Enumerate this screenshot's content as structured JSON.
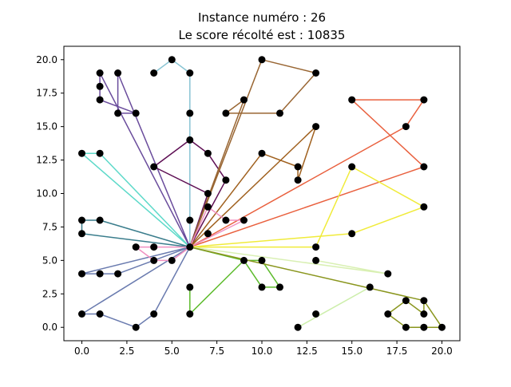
{
  "chart_data": {
    "type": "line",
    "title": "Instance numéro : 26",
    "subtitle": "Le score récolté est : 10835",
    "xlabel": "",
    "ylabel": "",
    "xlim": [
      -1,
      21
    ],
    "ylim": [
      -1,
      21
    ],
    "grid": false,
    "x_ticks": [
      "0.0",
      "2.5",
      "5.0",
      "7.5",
      "10.0",
      "12.5",
      "15.0",
      "17.5",
      "20.0"
    ],
    "y_ticks": [
      "0.0",
      "2.5",
      "5.0",
      "7.5",
      "10.0",
      "12.5",
      "15.0",
      "17.5",
      "20.0"
    ],
    "depot": [
      6,
      6
    ],
    "point_color": "#000000",
    "routes": [
      {
        "color": "#5DD9C9",
        "points": [
          [
            6,
            6
          ],
          [
            1,
            13
          ],
          [
            0,
            13
          ],
          [
            6,
            6
          ]
        ]
      },
      {
        "color": "#3A7D8C",
        "points": [
          [
            6,
            6
          ],
          [
            1,
            8
          ],
          [
            0,
            8
          ],
          [
            0,
            7
          ],
          [
            6,
            6
          ]
        ]
      },
      {
        "color": "#6A4C9C",
        "points": [
          [
            6,
            6
          ],
          [
            1,
            19
          ],
          [
            1,
            18
          ],
          [
            1,
            17
          ],
          [
            3,
            16
          ],
          [
            2,
            16
          ],
          [
            2,
            19
          ],
          [
            6,
            6
          ]
        ]
      },
      {
        "color": "#88C4D3",
        "points": [
          [
            6,
            6
          ],
          [
            6,
            16
          ],
          [
            6,
            19
          ],
          [
            5,
            20
          ],
          [
            4,
            19
          ]
        ]
      },
      {
        "color": "#5E0F54",
        "points": [
          [
            6,
            6
          ],
          [
            8,
            11
          ],
          [
            7,
            13
          ],
          [
            6,
            14
          ],
          [
            4,
            12
          ],
          [
            7,
            10
          ],
          [
            6,
            6
          ]
        ]
      },
      {
        "color": "#996633",
        "points": [
          [
            6,
            6
          ],
          [
            9,
            17
          ],
          [
            8,
            16
          ],
          [
            11,
            16
          ],
          [
            13,
            19
          ],
          [
            10,
            20
          ],
          [
            6,
            6
          ]
        ]
      },
      {
        "color": "#A0611F",
        "points": [
          [
            6,
            6
          ],
          [
            13,
            15
          ],
          [
            12,
            11
          ],
          [
            12,
            12
          ],
          [
            10,
            13
          ],
          [
            6,
            6
          ]
        ]
      },
      {
        "color": "#E9603E",
        "points": [
          [
            6,
            6
          ],
          [
            18,
            15
          ],
          [
            19,
            17
          ],
          [
            15,
            17
          ],
          [
            19,
            12
          ],
          [
            6,
            6
          ]
        ]
      },
      {
        "color": "#F0EB3A",
        "points": [
          [
            6,
            6
          ],
          [
            13,
            6
          ],
          [
            15,
            12
          ],
          [
            19,
            9
          ],
          [
            15,
            7
          ],
          [
            6,
            6
          ]
        ]
      },
      {
        "color": "#D9F0B3",
        "points": [
          [
            6,
            6
          ],
          [
            17,
            4
          ],
          [
            13,
            5
          ]
        ]
      },
      {
        "color": "#CCEEAA",
        "points": [
          [
            12,
            0
          ],
          [
            16,
            3
          ]
        ]
      },
      {
        "color": "#5DBB2C",
        "points": [
          [
            6,
            6
          ],
          [
            9,
            5
          ],
          [
            10,
            5
          ],
          [
            11,
            3
          ],
          [
            10,
            3
          ],
          [
            9,
            5
          ],
          [
            6,
            1
          ],
          [
            6,
            3
          ]
        ]
      },
      {
        "color": "#8A961E",
        "points": [
          [
            6,
            6
          ],
          [
            19,
            2
          ],
          [
            19,
            1
          ],
          [
            18,
            2
          ],
          [
            17,
            1
          ],
          [
            18,
            0
          ],
          [
            19,
            0
          ],
          [
            20,
            0
          ],
          [
            19,
            2
          ],
          [
            6,
            6
          ]
        ]
      },
      {
        "color": "#6A7BAF",
        "points": [
          [
            6,
            6
          ],
          [
            0,
            4
          ],
          [
            1,
            4
          ],
          [
            2,
            4
          ],
          [
            6,
            6
          ]
        ]
      },
      {
        "color": "#6A7BAF",
        "points": [
          [
            6,
            6
          ],
          [
            4,
            1
          ],
          [
            3,
            0
          ],
          [
            1,
            1
          ],
          [
            0,
            1
          ],
          [
            6,
            6
          ]
        ]
      },
      {
        "color": "#F090C0",
        "points": [
          [
            6,
            6
          ],
          [
            3,
            6
          ],
          [
            4,
            5
          ],
          [
            5,
            5
          ],
          [
            6,
            6
          ],
          [
            7,
            9
          ],
          [
            8,
            8
          ],
          [
            9,
            8
          ],
          [
            6,
            6
          ]
        ]
      }
    ],
    "extra_points": [
      [
        5,
        20
      ],
      [
        4,
        19
      ],
      [
        6,
        19
      ],
      [
        7,
        7
      ],
      [
        6,
        8
      ],
      [
        4,
        6
      ],
      [
        13,
        1
      ],
      [
        12,
        0
      ],
      [
        16,
        3
      ],
      [
        17,
        4
      ],
      [
        13,
        5
      ],
      [
        6,
        3
      ],
      [
        6,
        1
      ]
    ]
  }
}
